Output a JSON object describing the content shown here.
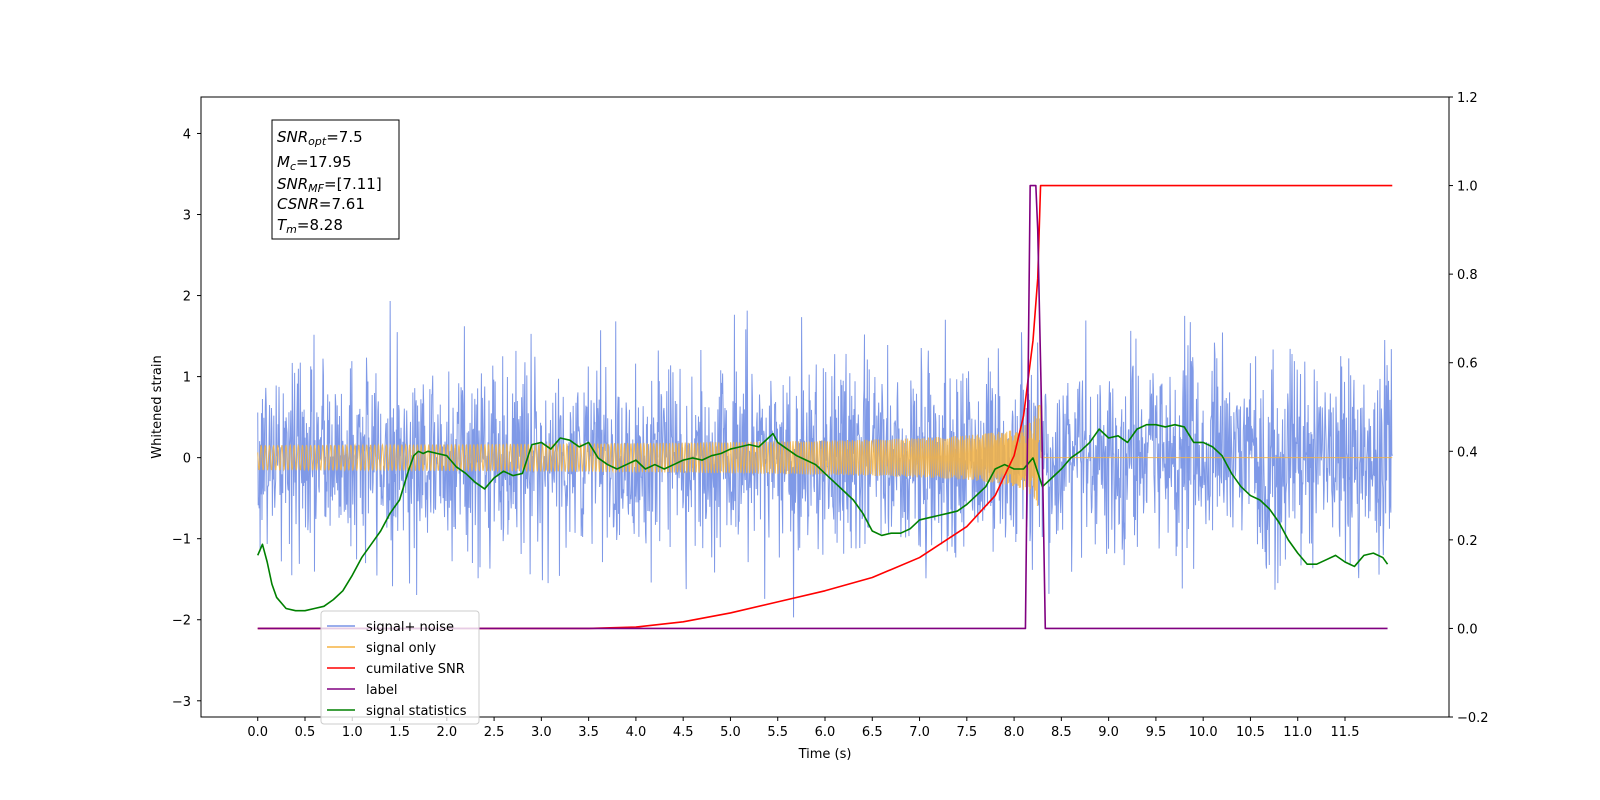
{
  "chart_data": {
    "type": "line",
    "title": "",
    "xlabel": "Time (s)",
    "ylabel": "Whitened strain",
    "xlim": [
      -0.6,
      12.6
    ],
    "ylim": [
      -3.2,
      4.45
    ],
    "y2lim": [
      -0.2,
      1.2
    ],
    "grid": false,
    "legend_position": "lower-left",
    "x_ticks": [
      "0.0",
      "0.5",
      "1.0",
      "1.5",
      "2.0",
      "2.5",
      "3.0",
      "3.5",
      "4.0",
      "4.5",
      "5.0",
      "5.5",
      "6.0",
      "6.5",
      "7.0",
      "7.5",
      "8.0",
      "8.5",
      "9.0",
      "9.5",
      "10.0",
      "10.5",
      "11.0",
      "11.5"
    ],
    "y_ticks": [
      "-3",
      "-2",
      "-1",
      "0",
      "1",
      "2",
      "3",
      "4"
    ],
    "y2_ticks": [
      "-0.2",
      "0.0",
      "0.2",
      "0.4",
      "0.6",
      "0.8",
      "1.0",
      "1.2"
    ],
    "annotation": {
      "snr_opt_label": "SNR",
      "snr_opt_sub": "opt",
      "snr_opt_value": "=7.5",
      "mc_label": "M",
      "mc_sub": "c",
      "mc_value": "=17.95",
      "snr_mf_label": "SNR",
      "snr_mf_sub": "MF",
      "snr_mf_value": "=[7.11]",
      "csnr_label": "CSNR",
      "csnr_value": "=7.61",
      "tm_label": "T",
      "tm_sub": "m",
      "tm_value": "=8.28"
    },
    "series": [
      {
        "name": "signal+ noise",
        "axis": "left",
        "color": "#7894e6",
        "description": "white noise, standard deviation about 0.6 around 0",
        "x_range": [
          0.0,
          12.0
        ],
        "noise_std": 0.6
      },
      {
        "name": "signal only",
        "axis": "left",
        "color": "#f5b342",
        "x_range": [
          0.0,
          12.0
        ],
        "chirp_end": 8.28,
        "peak_amplitude": 0.55
      },
      {
        "name": "cumilative SNR",
        "axis": "right",
        "color": "#ff0000",
        "x": [
          0.0,
          3.5,
          4.0,
          4.5,
          5.0,
          5.5,
          6.0,
          6.5,
          7.0,
          7.5,
          7.8,
          8.0,
          8.1,
          8.2,
          8.25,
          8.28,
          8.3,
          12.0
        ],
        "values": [
          0.0,
          0.0,
          0.003,
          0.015,
          0.035,
          0.06,
          0.085,
          0.115,
          0.16,
          0.23,
          0.3,
          0.39,
          0.48,
          0.65,
          0.79,
          1.0,
          1.0,
          1.0
        ]
      },
      {
        "name": "label",
        "axis": "right",
        "color": "#800080",
        "x": [
          0.0,
          8.12,
          8.17,
          8.23,
          8.25,
          8.29,
          8.33,
          11.95
        ],
        "values": [
          0.0,
          0.0,
          1.0,
          1.0,
          0.9,
          0.5,
          0.0,
          0.0
        ]
      },
      {
        "name": "signal statistics",
        "axis": "right",
        "color": "#008000",
        "x": [
          0.0,
          0.05,
          0.1,
          0.15,
          0.2,
          0.3,
          0.4,
          0.5,
          0.6,
          0.7,
          0.8,
          0.9,
          1.0,
          1.1,
          1.2,
          1.3,
          1.4,
          1.5,
          1.6,
          1.65,
          1.7,
          1.75,
          1.8,
          1.9,
          2.0,
          2.1,
          2.2,
          2.3,
          2.4,
          2.5,
          2.6,
          2.7,
          2.8,
          2.9,
          3.0,
          3.1,
          3.2,
          3.3,
          3.4,
          3.5,
          3.6,
          3.7,
          3.8,
          3.9,
          4.0,
          4.1,
          4.2,
          4.3,
          4.4,
          4.5,
          4.6,
          4.7,
          4.8,
          4.9,
          5.0,
          5.1,
          5.2,
          5.3,
          5.4,
          5.45,
          5.5,
          5.6,
          5.7,
          5.8,
          5.9,
          6.0,
          6.1,
          6.2,
          6.3,
          6.4,
          6.5,
          6.6,
          6.7,
          6.8,
          6.9,
          7.0,
          7.1,
          7.2,
          7.3,
          7.4,
          7.5,
          7.6,
          7.7,
          7.8,
          7.9,
          8.0,
          8.1,
          8.2,
          8.3,
          8.4,
          8.5,
          8.6,
          8.7,
          8.8,
          8.9,
          9.0,
          9.1,
          9.2,
          9.3,
          9.4,
          9.5,
          9.6,
          9.7,
          9.8,
          9.9,
          10.0,
          10.1,
          10.2,
          10.3,
          10.4,
          10.5,
          10.6,
          10.7,
          10.8,
          10.9,
          11.0,
          11.1,
          11.2,
          11.3,
          11.4,
          11.5,
          11.6,
          11.7,
          11.8,
          11.9,
          11.95
        ],
        "values": [
          0.165,
          0.19,
          0.15,
          0.1,
          0.07,
          0.045,
          0.04,
          0.04,
          0.045,
          0.05,
          0.065,
          0.085,
          0.12,
          0.16,
          0.19,
          0.22,
          0.26,
          0.29,
          0.36,
          0.39,
          0.4,
          0.395,
          0.4,
          0.395,
          0.39,
          0.365,
          0.35,
          0.33,
          0.315,
          0.34,
          0.355,
          0.345,
          0.35,
          0.415,
          0.42,
          0.405,
          0.43,
          0.425,
          0.41,
          0.42,
          0.385,
          0.37,
          0.36,
          0.37,
          0.38,
          0.36,
          0.37,
          0.36,
          0.37,
          0.38,
          0.385,
          0.38,
          0.39,
          0.395,
          0.405,
          0.41,
          0.415,
          0.41,
          0.43,
          0.44,
          0.42,
          0.405,
          0.39,
          0.38,
          0.37,
          0.35,
          0.33,
          0.31,
          0.29,
          0.26,
          0.22,
          0.21,
          0.215,
          0.215,
          0.225,
          0.245,
          0.25,
          0.255,
          0.26,
          0.265,
          0.28,
          0.3,
          0.32,
          0.36,
          0.37,
          0.36,
          0.36,
          0.385,
          0.32,
          0.34,
          0.36,
          0.385,
          0.4,
          0.42,
          0.45,
          0.43,
          0.435,
          0.42,
          0.45,
          0.46,
          0.46,
          0.455,
          0.46,
          0.455,
          0.42,
          0.42,
          0.41,
          0.39,
          0.35,
          0.32,
          0.3,
          0.29,
          0.27,
          0.24,
          0.2,
          0.17,
          0.145,
          0.145,
          0.155,
          0.165,
          0.15,
          0.14,
          0.165,
          0.17,
          0.16,
          0.145
        ]
      }
    ],
    "legend": [
      {
        "label": "signal+ noise",
        "color": "#7894e6"
      },
      {
        "label": "signal only",
        "color": "#f5b342"
      },
      {
        "label": "cumilative SNR",
        "color": "#ff0000"
      },
      {
        "label": "label",
        "color": "#800080"
      },
      {
        "label": "signal statistics",
        "color": "#008000"
      }
    ]
  }
}
